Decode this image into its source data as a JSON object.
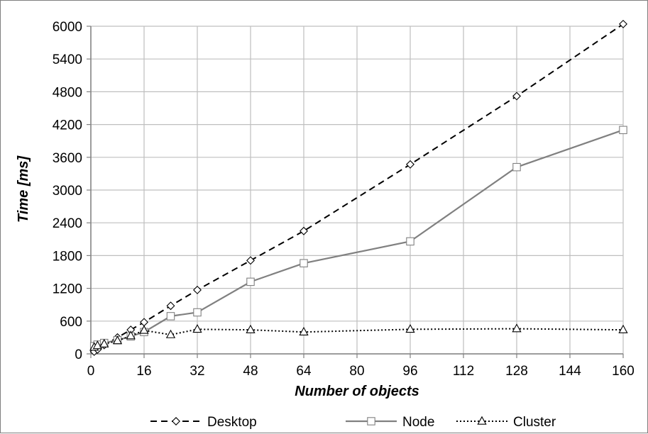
{
  "chart_data": {
    "type": "line",
    "title": "",
    "xlabel": "Number of objects",
    "ylabel": "Time [ms]",
    "xlim": [
      0,
      160
    ],
    "ylim": [
      0,
      6000
    ],
    "x_ticks": [
      0,
      16,
      32,
      48,
      64,
      80,
      96,
      112,
      128,
      144,
      160
    ],
    "y_ticks": [
      0,
      600,
      1200,
      1800,
      2400,
      3000,
      3600,
      4200,
      4800,
      5400,
      6000
    ],
    "grid": true,
    "legend_position": "bottom",
    "series": [
      {
        "name": "Desktop",
        "line_style": "dashed",
        "marker": "diamond",
        "color": "#000000",
        "points": [
          [
            1,
            40
          ],
          [
            2,
            80
          ],
          [
            4,
            160
          ],
          [
            8,
            300
          ],
          [
            12,
            440
          ],
          [
            16,
            580
          ],
          [
            24,
            880
          ],
          [
            32,
            1170
          ],
          [
            48,
            1710
          ],
          [
            64,
            2250
          ],
          [
            96,
            3470
          ],
          [
            128,
            4720
          ],
          [
            160,
            6040
          ]
        ]
      },
      {
        "name": "Node",
        "line_style": "solid",
        "marker": "square",
        "color": "#808080",
        "points": [
          [
            1,
            140
          ],
          [
            2,
            170
          ],
          [
            4,
            200
          ],
          [
            8,
            250
          ],
          [
            12,
            320
          ],
          [
            16,
            400
          ],
          [
            24,
            690
          ],
          [
            32,
            760
          ],
          [
            48,
            1320
          ],
          [
            64,
            1660
          ],
          [
            96,
            2060
          ],
          [
            128,
            3420
          ],
          [
            160,
            4100
          ]
        ]
      },
      {
        "name": "Cluster",
        "line_style": "dotted",
        "marker": "triangle",
        "color": "#000000",
        "points": [
          [
            1,
            120
          ],
          [
            2,
            150
          ],
          [
            4,
            180
          ],
          [
            8,
            240
          ],
          [
            12,
            330
          ],
          [
            16,
            430
          ],
          [
            24,
            350
          ],
          [
            32,
            450
          ],
          [
            48,
            440
          ],
          [
            64,
            400
          ],
          [
            96,
            450
          ],
          [
            128,
            460
          ],
          [
            160,
            440
          ]
        ]
      }
    ]
  }
}
